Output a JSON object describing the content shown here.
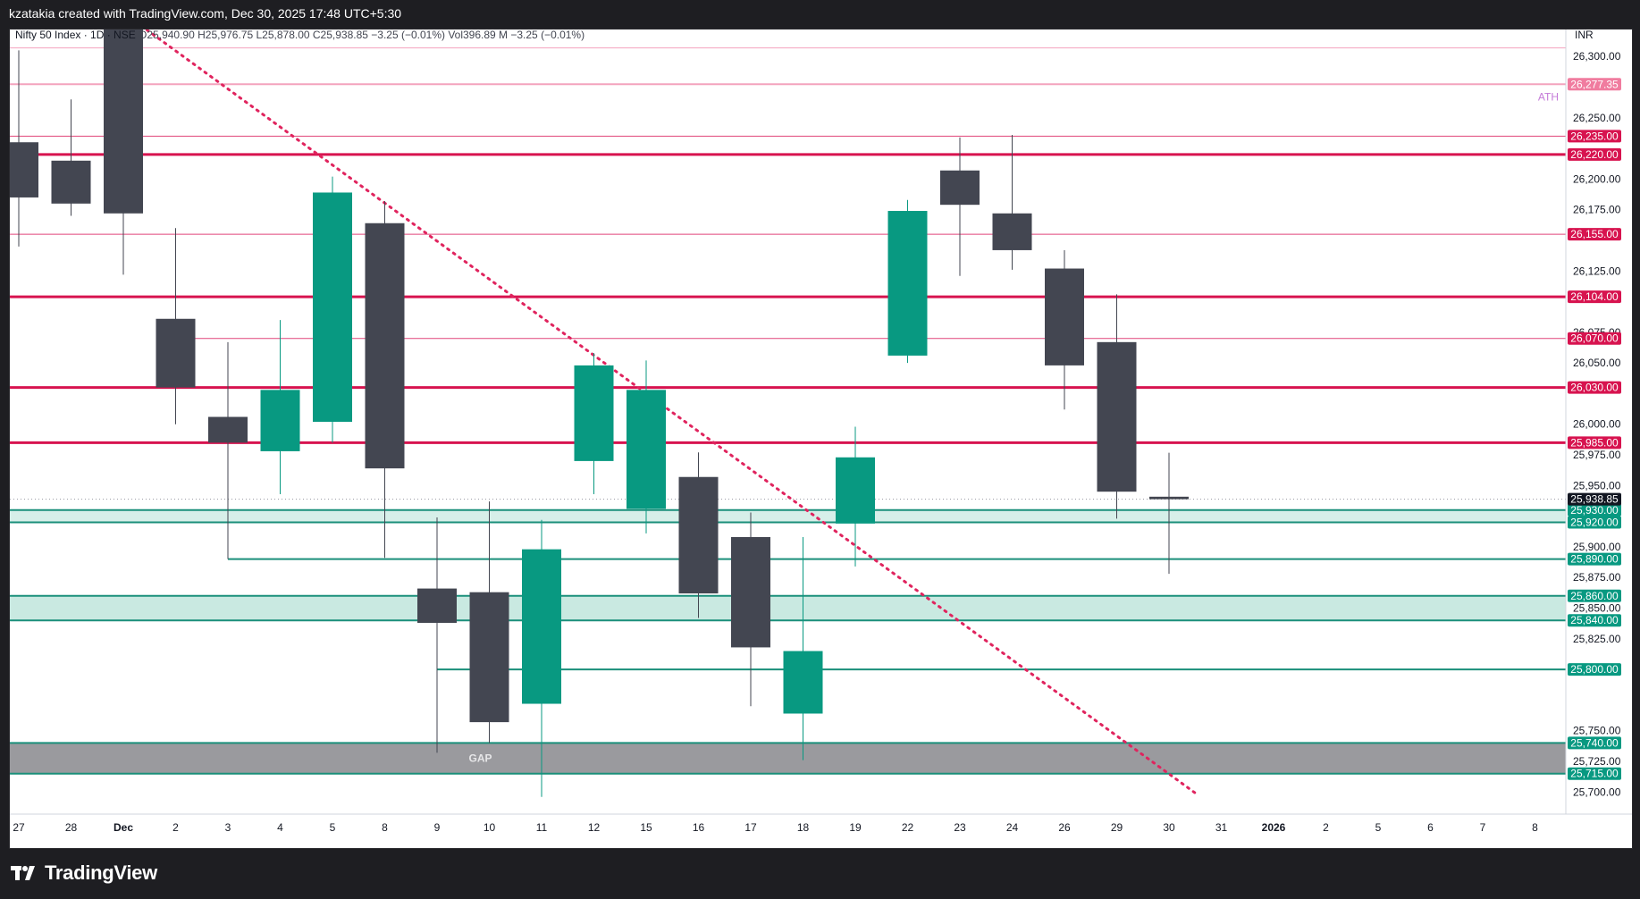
{
  "header": {
    "attribution": "kzatakia created with TradingView.com, Dec 30, 2025 17:48 UTC+5:30"
  },
  "footer": {
    "brand": "TradingView"
  },
  "chart_data": {
    "type": "candlestick",
    "currency": "INR",
    "legend": {
      "symbol": "Nifty 50 Index · 1D · NSE",
      "ohlc": "O25,940.90  H25,976.75  L25,878.00  C25,938.85  −3.25 (−0.01%)  Vol396.89 M  −3.25 (−0.01%)"
    },
    "ylim": [
      25682,
      26322
    ],
    "y_ticks": [
      "26,300.00",
      "26,250.00",
      "26,200.00",
      "26,175.00",
      "26,125.00",
      "26,075.00",
      "26,050.00",
      "26,000.00",
      "25,975.00",
      "25,950.00",
      "25,900.00",
      "25,875.00",
      "25,850.00",
      "25,825.00",
      "25,750.00",
      "25,725.00",
      "25,700.00"
    ],
    "y_tick_values": [
      26300,
      26250,
      26200,
      26175,
      26125,
      26075,
      26050,
      26000,
      25975,
      25950,
      25900,
      25875,
      25850,
      25825,
      25750,
      25725,
      25700
    ],
    "x_labels": [
      "27",
      "28",
      "Dec",
      "2",
      "3",
      "4",
      "5",
      "8",
      "9",
      "10",
      "11",
      "12",
      "15",
      "16",
      "17",
      "18",
      "19",
      "22",
      "23",
      "24",
      "26",
      "29",
      "30",
      "31",
      "2026",
      "2",
      "5",
      "6",
      "7",
      "8"
    ],
    "candles": [
      {
        "date": "27",
        "open": 26230,
        "high": 26305,
        "low": 26145,
        "close": 26185
      },
      {
        "date": "28",
        "open": 26215,
        "high": 26265,
        "low": 26170,
        "close": 26180
      },
      {
        "date": "Dec",
        "open": 26325,
        "high": 26325,
        "low": 26122,
        "close": 26172
      },
      {
        "date": "2",
        "open": 26086,
        "high": 26160,
        "low": 26000,
        "close": 26030
      },
      {
        "date": "3",
        "open": 26006,
        "high": 26067,
        "low": 25890,
        "close": 25985
      },
      {
        "date": "4",
        "open": 25978,
        "high": 26085,
        "low": 25943,
        "close": 26028
      },
      {
        "date": "5",
        "open": 26002,
        "high": 26202,
        "low": 25985,
        "close": 26189
      },
      {
        "date": "8",
        "open": 26164,
        "high": 26182,
        "low": 25891,
        "close": 25964
      },
      {
        "date": "9",
        "open": 25866,
        "high": 25924,
        "low": 25732,
        "close": 25838
      },
      {
        "date": "10",
        "open": 25863,
        "high": 25937,
        "low": 25740,
        "close": 25757
      },
      {
        "date": "11",
        "open": 25772,
        "high": 25922,
        "low": 25696,
        "close": 25898
      },
      {
        "date": "12",
        "open": 25970,
        "high": 26058,
        "low": 25943,
        "close": 26048
      },
      {
        "date": "15",
        "open": 25931,
        "high": 26052,
        "low": 25911,
        "close": 26028
      },
      {
        "date": "16",
        "open": 25957,
        "high": 25977,
        "low": 25842,
        "close": 25862
      },
      {
        "date": "17",
        "open": 25908,
        "high": 25928,
        "low": 25770,
        "close": 25818
      },
      {
        "date": "18",
        "open": 25764,
        "high": 25908,
        "low": 25726,
        "close": 25815
      },
      {
        "date": "19",
        "open": 25919,
        "high": 25998,
        "low": 25884,
        "close": 25973
      },
      {
        "date": "22",
        "open": 26056,
        "high": 26183,
        "low": 26050,
        "close": 26174
      },
      {
        "date": "23",
        "open": 26207,
        "high": 26234,
        "low": 26121,
        "close": 26179
      },
      {
        "date": "24",
        "open": 26172,
        "high": 26236,
        "low": 26126,
        "close": 26142
      },
      {
        "date": "26",
        "open": 26127,
        "high": 26142,
        "low": 26012,
        "close": 26048
      },
      {
        "date": "29",
        "open": 26067,
        "high": 26106,
        "low": 25923,
        "close": 25945
      },
      {
        "date": "30",
        "open": 25940.9,
        "high": 25976.75,
        "low": 25878.0,
        "close": 25938.85
      }
    ],
    "levels": [
      {
        "value": 26307,
        "label": "",
        "color": "#f4a3be",
        "width": 1
      },
      {
        "value": 26277.35,
        "label": "26,277.35",
        "color": "#f4a3be",
        "width": 2
      },
      {
        "value": 26235.0,
        "label": "26,235.00",
        "color": "#e0457a",
        "width": 1
      },
      {
        "value": 26220.0,
        "label": "26,220.00",
        "color": "#d7134f",
        "width": 3
      },
      {
        "value": 26155.0,
        "label": "26,155.00",
        "color": "#e0457a",
        "width": 1
      },
      {
        "value": 26104.0,
        "label": "26,104.00",
        "color": "#d7134f",
        "width": 3
      },
      {
        "value": 26070.0,
        "label": "26,070.00",
        "color": "#e0457a",
        "width": 1
      },
      {
        "value": 26030.0,
        "label": "26,030.00",
        "color": "#d7134f",
        "width": 3
      },
      {
        "value": 25985.0,
        "label": "25,985.00",
        "color": "#d7134f",
        "width": 3
      },
      {
        "value": 25930.0,
        "label": "25,930.00",
        "color": "#1a8f7a",
        "width": 2
      },
      {
        "value": 25920.0,
        "label": "25,920.00",
        "color": "#1a8f7a",
        "width": 2
      },
      {
        "value": 25890.0,
        "label": "25,890.00",
        "color": "#1a8f7a",
        "width": 2
      },
      {
        "value": 25860.0,
        "label": "25,860.00",
        "color": "#1a8f7a",
        "width": 2
      },
      {
        "value": 25840.0,
        "label": "25,840.00",
        "color": "#1a8f7a",
        "width": 2
      },
      {
        "value": 25800.0,
        "label": "25,800.00",
        "color": "#1a8f7a",
        "width": 2
      },
      {
        "value": 25740.0,
        "label": "25,740.00",
        "color": "#1a8f7a",
        "width": 2
      },
      {
        "value": 25715.0,
        "label": "25,715.00",
        "color": "#1a8f7a",
        "width": 2
      }
    ],
    "zones": [
      {
        "from": 25920,
        "to": 25930,
        "color": "#d7efe9",
        "label": ""
      },
      {
        "from": 25840,
        "to": 25860,
        "color": "#c9e9e1",
        "label": ""
      },
      {
        "from": 25715,
        "to": 25740,
        "color": "#9a9a9e",
        "label": "GAP"
      }
    ],
    "annotations": [
      {
        "text": "ATH",
        "value": 26267,
        "color": "#c47ad8"
      }
    ],
    "trendline": {
      "from_date": "Dec",
      "from_value": 26325,
      "to_date": "31",
      "to_value": 25697,
      "color": "#e0245e",
      "style": "dotted"
    },
    "last_price": {
      "value": 25938.85,
      "label": "25,938.85"
    },
    "colors": {
      "up": "#089981",
      "down": "#434651",
      "resistance": "#d7134f",
      "support": "#1a8f7a",
      "axis_text": "#131722",
      "grid": "#f0f3fa"
    }
  }
}
